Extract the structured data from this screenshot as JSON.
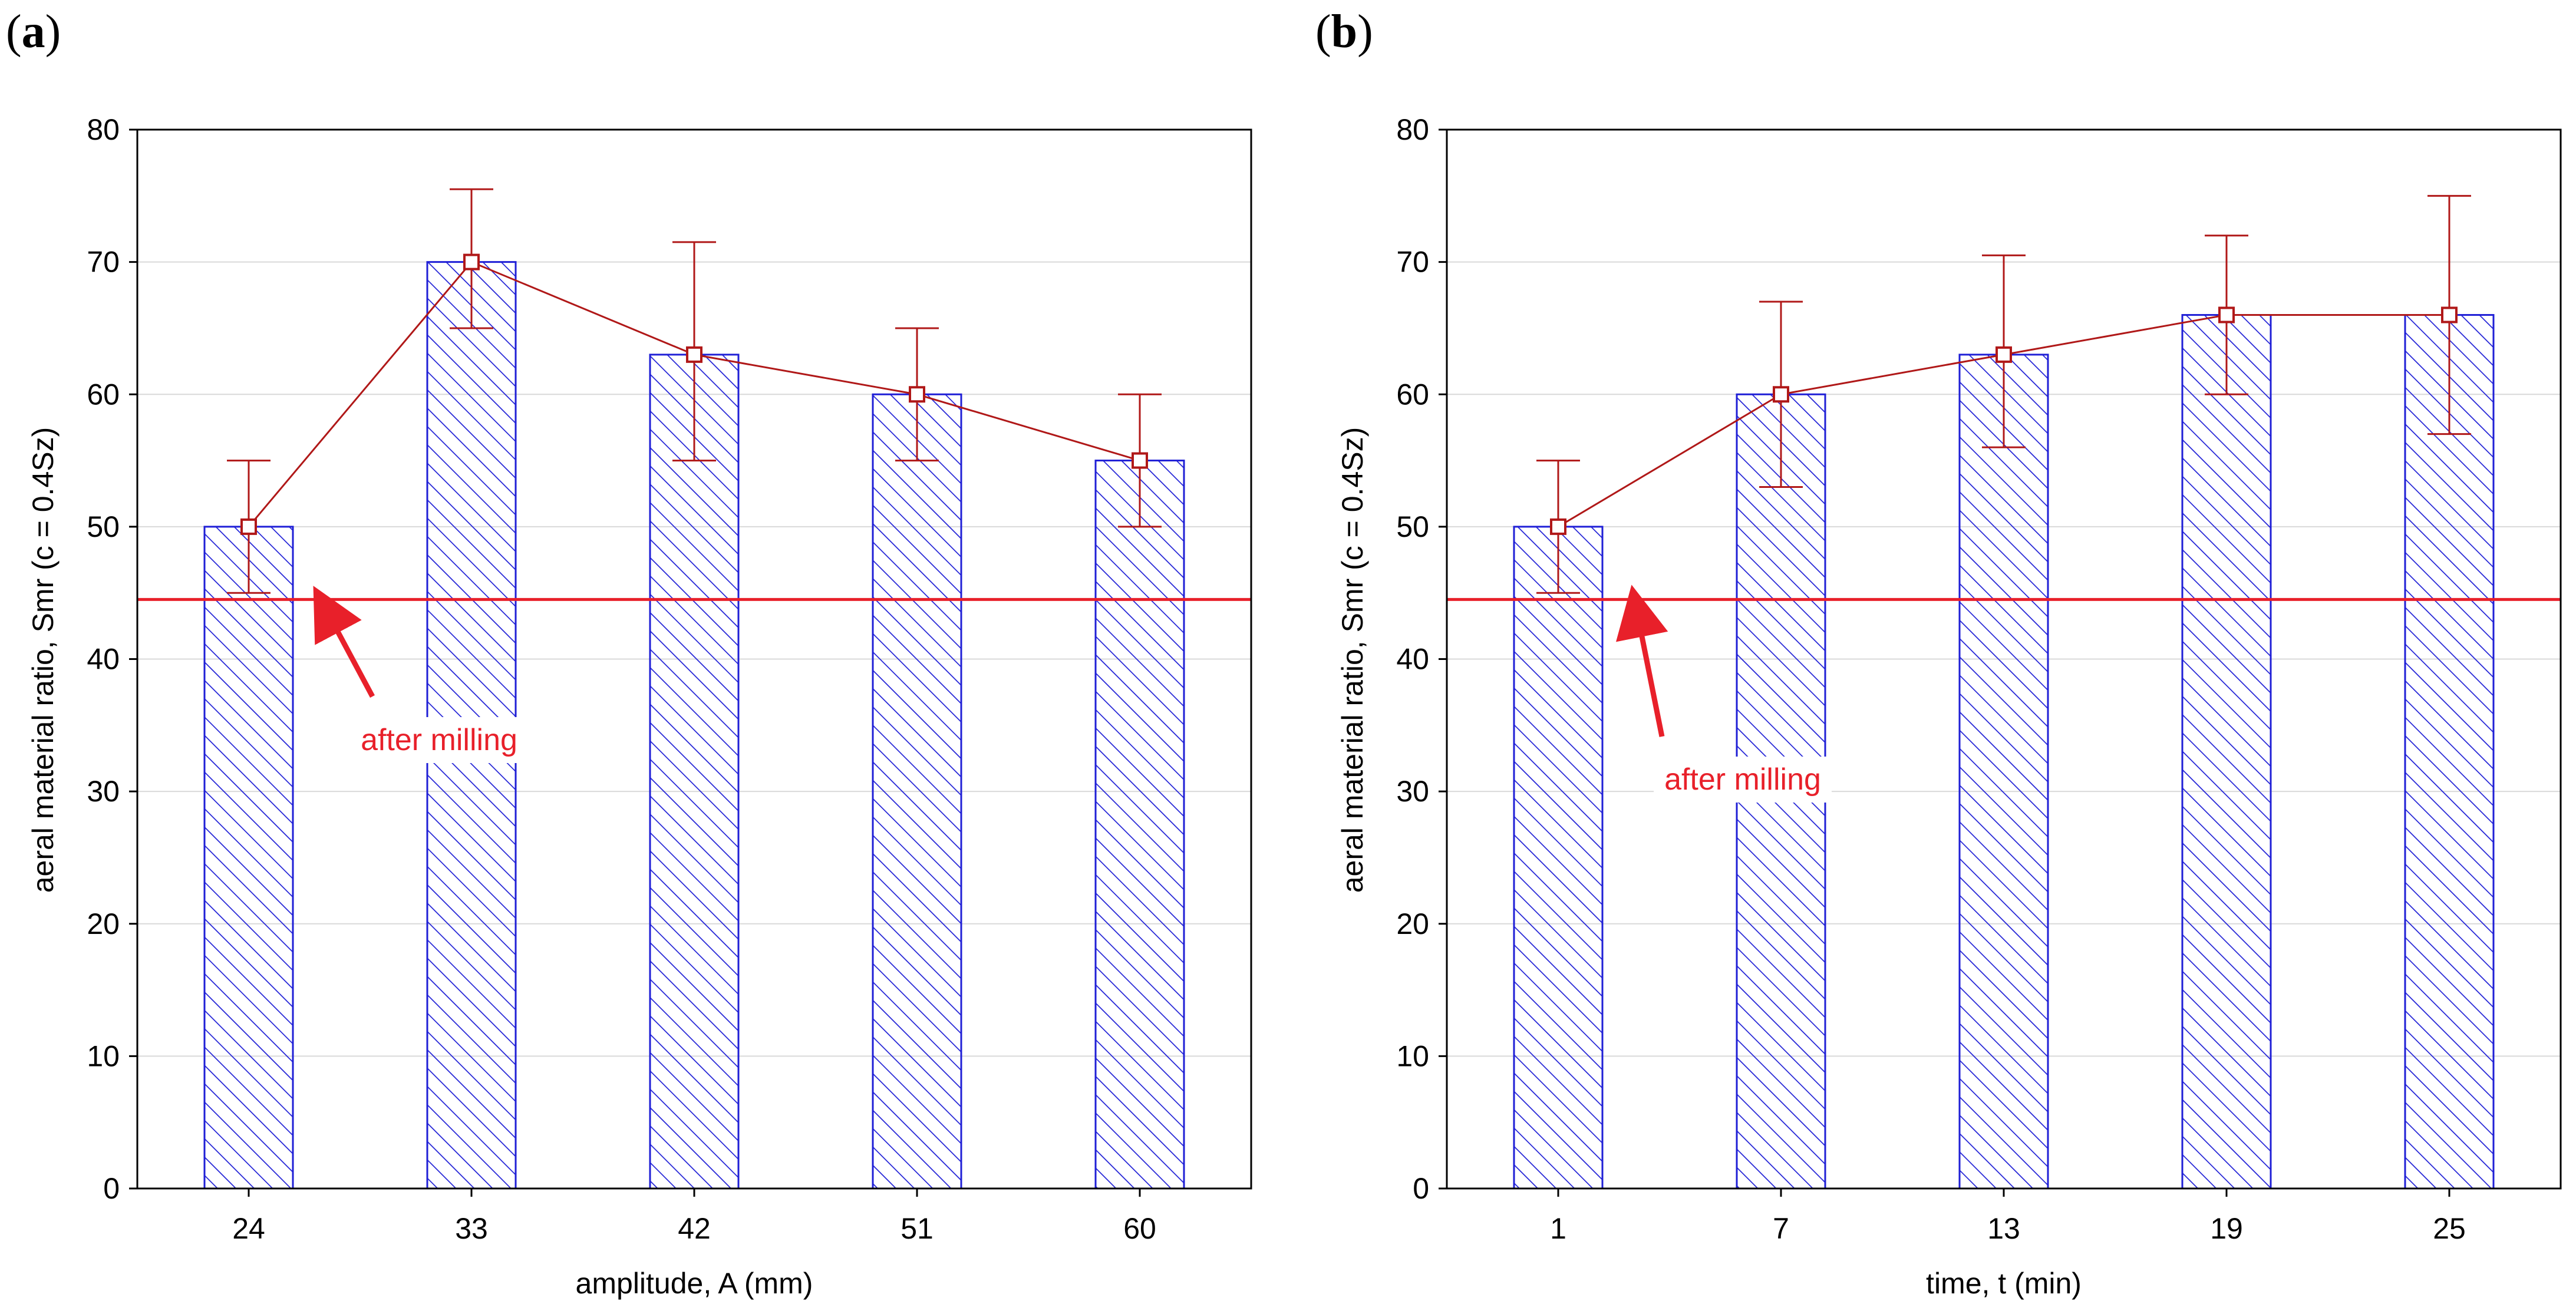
{
  "colors": {
    "bar_hatch": "#1f1fd6",
    "bar_edge": "#1f1fd6",
    "series_line": "#b01818",
    "reference_line": "#e8202a",
    "annotation": "#e8202a",
    "grid": "#d9d9d9",
    "axis": "#000000"
  },
  "chart_data": [
    {
      "type": "bar",
      "panel_label": "a",
      "categories": [
        "24",
        "33",
        "42",
        "51",
        "60"
      ],
      "values": [
        50,
        70,
        63,
        60,
        55
      ],
      "mean_line": [
        50,
        70,
        63,
        60,
        55
      ],
      "error_low": [
        45,
        65,
        55,
        55,
        50
      ],
      "error_high": [
        55,
        75.5,
        71.5,
        65,
        60
      ],
      "reference_line": 44.5,
      "annotation": "after milling",
      "xlabel": "amplitude, A (mm)",
      "ylabel": "aeral material ratio, Smr (c = 0.4Sz)",
      "ylim": [
        0,
        80
      ],
      "yticks": [
        "0",
        "10",
        "20",
        "30",
        "40",
        "50",
        "60",
        "70",
        "80"
      ],
      "grid": true
    },
    {
      "type": "bar",
      "panel_label": "b",
      "categories": [
        "1",
        "7",
        "13",
        "19",
        "25"
      ],
      "values": [
        50,
        60,
        63,
        66,
        66
      ],
      "mean_line": [
        50,
        60,
        63,
        66,
        66
      ],
      "error_low": [
        45,
        53,
        56,
        60,
        57
      ],
      "error_high": [
        55,
        67,
        70.5,
        72,
        75
      ],
      "reference_line": 44.5,
      "annotation": "after milling",
      "xlabel": "time, t (min)",
      "ylabel": "aeral material ratio, Smr (c = 0.4Sz)",
      "ylim": [
        0,
        80
      ],
      "yticks": [
        "0",
        "10",
        "20",
        "30",
        "40",
        "50",
        "60",
        "70",
        "80"
      ],
      "grid": true
    }
  ]
}
